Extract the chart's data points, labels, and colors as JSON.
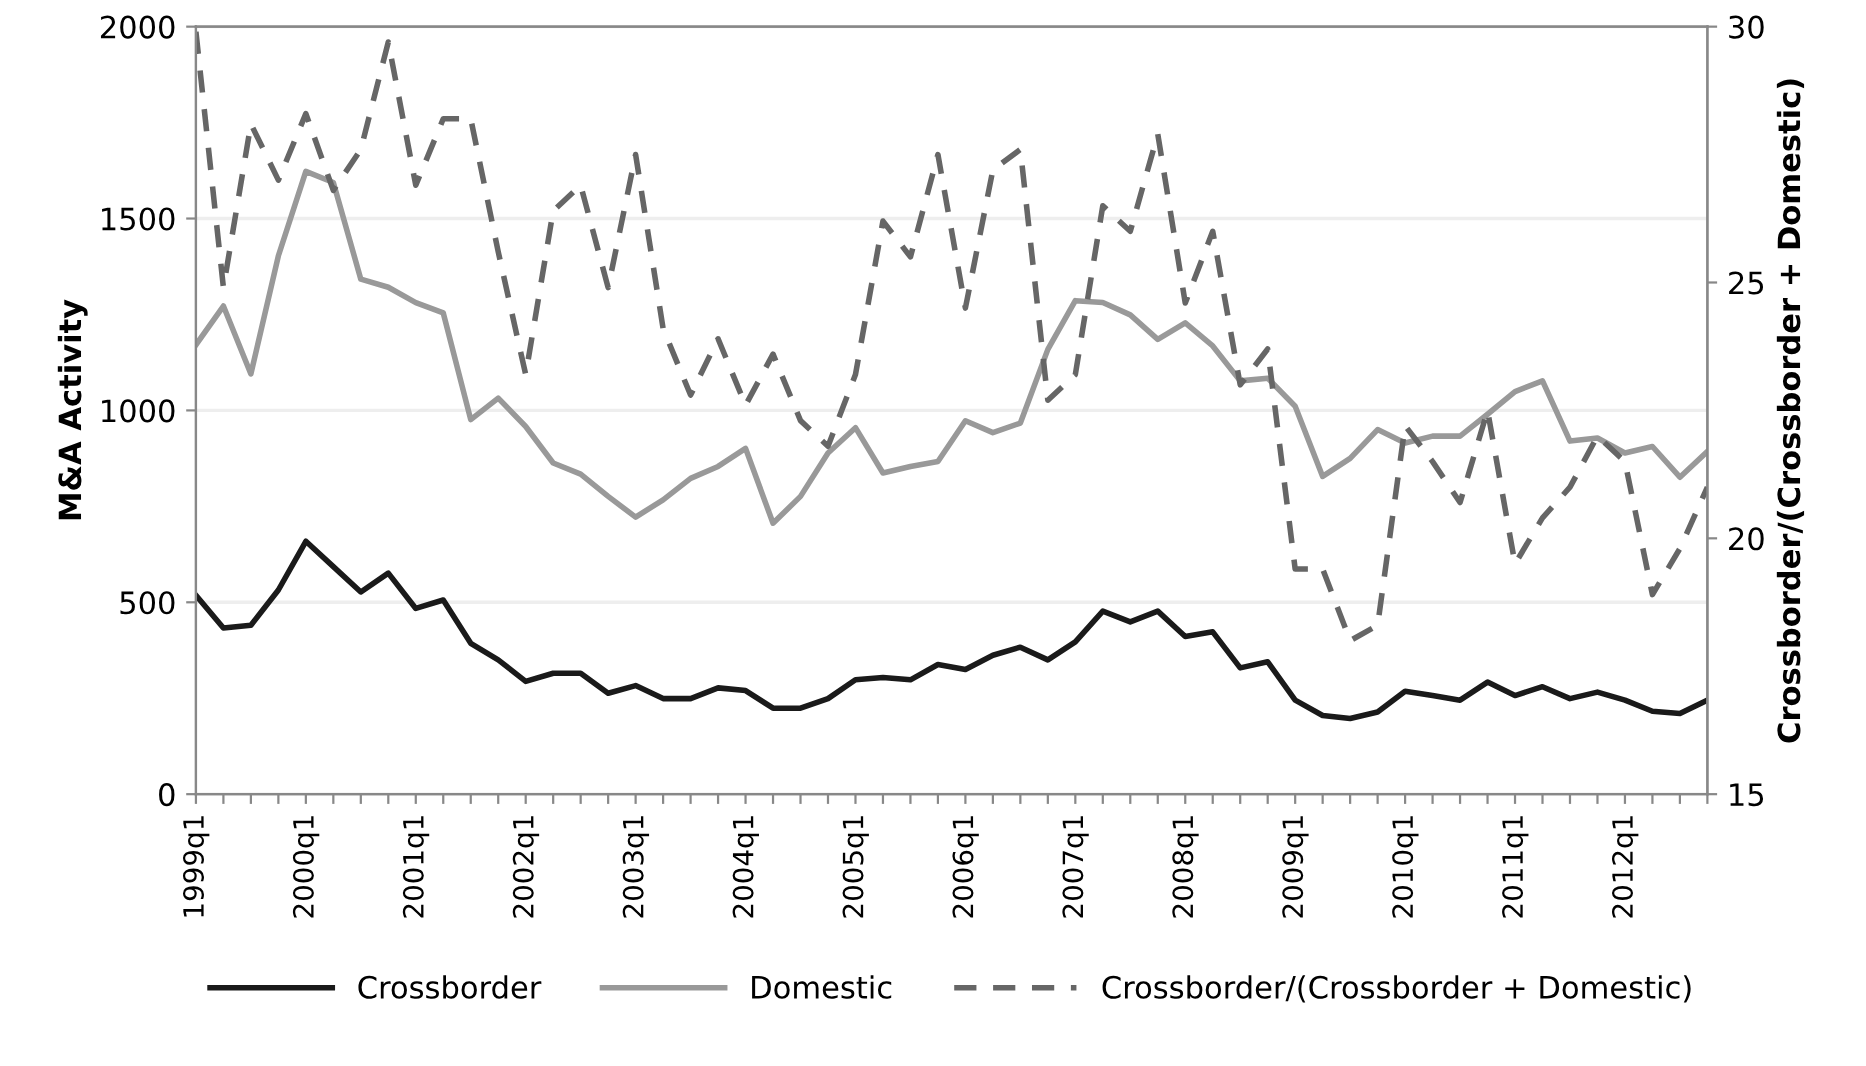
{
  "chart_data": {
    "type": "line",
    "ylabel": "M&A Activity",
    "y2label": "Crossborder/(Crossborder + Domestic)",
    "categories": [
      "1999q1",
      null,
      null,
      null,
      "2000q1",
      null,
      null,
      null,
      "2001q1",
      null,
      null,
      null,
      "2002q1",
      null,
      null,
      null,
      "2003q1",
      null,
      null,
      null,
      "2004q1",
      null,
      null,
      null,
      "2005q1",
      null,
      null,
      null,
      "2006q1",
      null,
      null,
      null,
      "2007q1",
      null,
      null,
      null,
      "2008q1",
      null,
      null,
      null,
      "2009q1",
      null,
      null,
      null,
      "2010q1",
      null,
      null,
      null,
      "2011q1",
      null,
      null,
      null,
      "2012q1",
      null,
      null,
      null
    ],
    "series": [
      {
        "name": "Crossborder",
        "color": "#1a1a1a",
        "line_style": "solid",
        "values": [
          518,
          433,
          440,
          532,
          659,
          593,
          527,
          576,
          484,
          506,
          393,
          350,
          294,
          315,
          315,
          263,
          283,
          249,
          249,
          277,
          270,
          224,
          224,
          249,
          298,
          304,
          298,
          338,
          325,
          362,
          383,
          350,
          397,
          477,
          449,
          477,
          411,
          423,
          329,
          345,
          245,
          205,
          197,
          214,
          268,
          257,
          245,
          292,
          257,
          280,
          249,
          266,
          245,
          216,
          210,
          245
        ]
      },
      {
        "name": "Domestic",
        "color": "#999999",
        "line_style": "solid",
        "values": [
          1171,
          1272,
          1095,
          1403,
          1623,
          1594,
          1342,
          1321,
          1281,
          1254,
          976,
          1032,
          958,
          863,
          834,
          776,
          722,
          767,
          823,
          854,
          901,
          706,
          776,
          889,
          955,
          837,
          854,
          867,
          973,
          942,
          967,
          1159,
          1286,
          1281,
          1249,
          1185,
          1228,
          1168,
          1077,
          1084,
          1011,
          828,
          875,
          950,
          915,
          933,
          933,
          990,
          1049,
          1077,
          920,
          928,
          889,
          906,
          826,
          893
        ]
      },
      {
        "name": "Crossborder/(Crossborder + Domestic)",
        "color": "#666666",
        "line_style": "dashed",
        "axis": "y2",
        "values": [
          29.9,
          24.9,
          28.1,
          27.0,
          28.3,
          26.8,
          27.6,
          29.7,
          26.9,
          28.2,
          28.2,
          25.6,
          23.2,
          26.4,
          26.9,
          24.9,
          27.5,
          24.1,
          22.8,
          23.9,
          22.6,
          23.6,
          22.3,
          21.8,
          23.2,
          26.2,
          25.5,
          27.5,
          24.5,
          27.2,
          27.6,
          22.7,
          23.2,
          26.5,
          26.0,
          27.9,
          24.6,
          26.0,
          23.0,
          23.7,
          19.4,
          19.4,
          18.0,
          18.3,
          22.2,
          21.5,
          20.7,
          22.5,
          19.5,
          20.4,
          21.0,
          22.0,
          21.5,
          18.9,
          19.8,
          21.0
        ]
      }
    ],
    "ylim": [
      0,
      2000
    ],
    "yticks": [
      0,
      500,
      1000,
      1500,
      2000
    ],
    "y2lim": [
      15,
      30
    ],
    "y2ticks": [
      15,
      20,
      25,
      30
    ],
    "grid": "y",
    "legend": "bottom"
  }
}
